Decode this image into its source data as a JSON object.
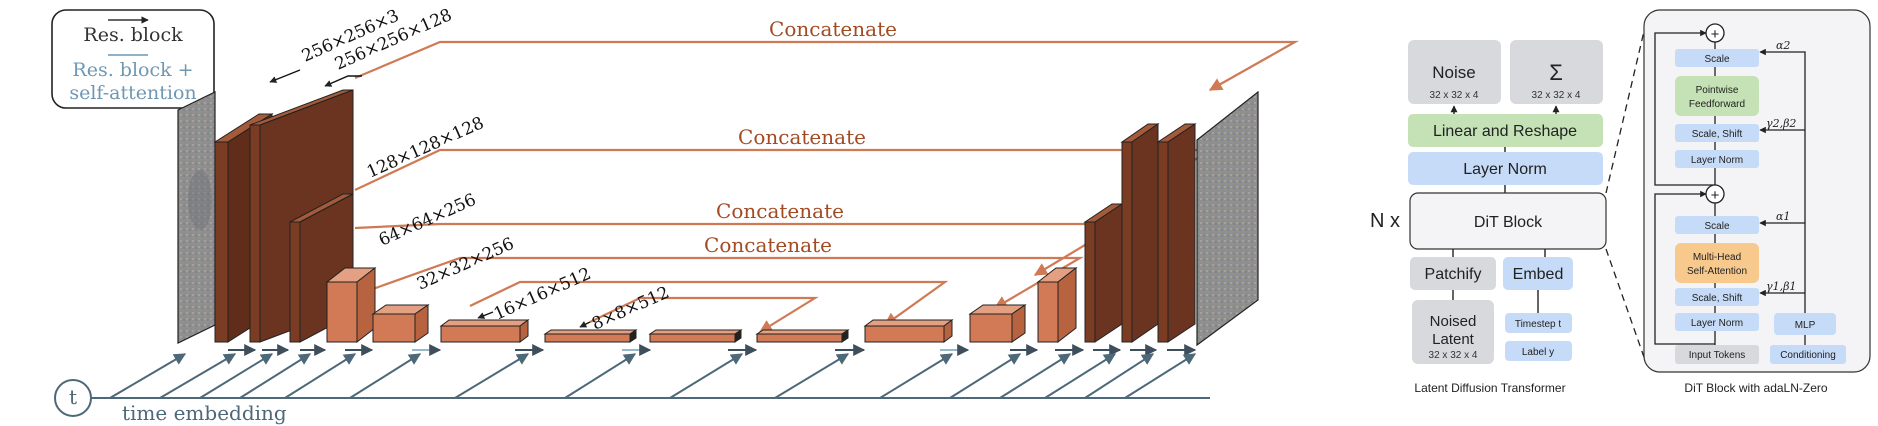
{
  "unet": {
    "legend": {
      "res_block": "Res. block",
      "res_attn_line1": "Res. block +",
      "res_attn_line2": "self-attention"
    },
    "dims": [
      "256×256×3",
      "256×256×128",
      "128×128×128",
      "64×64×256",
      "32×32×256",
      "16×16×512",
      "8×8×512"
    ],
    "skips": [
      "Concatenate",
      "Concatenate",
      "Concatenate",
      "Concatenate"
    ],
    "time": {
      "symbol": "t",
      "label": "time embedding"
    },
    "colors": {
      "block_dark": "#6b3420",
      "block_light": "#d27a55",
      "arrow": "#3e4f5b",
      "arrow_attn": "#9ab7c9",
      "skip": "#cf7a55",
      "time": "#4d6878",
      "legend_attn": "#6f97b2"
    }
  },
  "dit": {
    "noise": {
      "label": "Noise",
      "shape": "32 x 32 x 4"
    },
    "sigma": {
      "label": "Σ",
      "shape": "32 x 32 x 4"
    },
    "linear_reshape": "Linear and Reshape",
    "layer_norm": "Layer Norm",
    "n_x": "N x",
    "dit_block": "DiT Block",
    "patchify": "Patchify",
    "embed": "Embed",
    "noised_latent": {
      "line1": "Noised",
      "line2": "Latent",
      "shape": "32 x 32 x 4"
    },
    "timestep": "Timestep t",
    "label_y": "Label y",
    "caption": "Latent Diffusion Transformer",
    "colors": {
      "gray": "#d8d9dd",
      "green": "#c4e2b5",
      "blue": "#c6dbf7"
    }
  },
  "adaln": {
    "scale_top": "Scale",
    "pointwise_ff_1": "Pointwise",
    "pointwise_ff_2": "Feedforward",
    "scale_shift_top": "Scale, Shift",
    "layer_norm_top": "Layer Norm",
    "scale_bottom": "Scale",
    "mhsa_1": "Multi-Head",
    "mhsa_2": "Self-Attention",
    "scale_shift_bottom": "Scale, Shift",
    "layer_norm_bottom": "Layer Norm",
    "mlp": "MLP",
    "input_tokens": "Input Tokens",
    "conditioning": "Conditioning",
    "alpha2": "α2",
    "gamma2_beta2": "γ2,β2",
    "alpha1": "α1",
    "gamma1_beta1": "γ1,β1",
    "plus_symbol": "+",
    "caption": "DiT Block with adaLN-Zero",
    "colors": {
      "panel": "#f4f4f6",
      "orange": "#f7c98d",
      "green": "#c4e2b5",
      "blue": "#c6dbf7",
      "gray": "#d8d9dd"
    }
  }
}
